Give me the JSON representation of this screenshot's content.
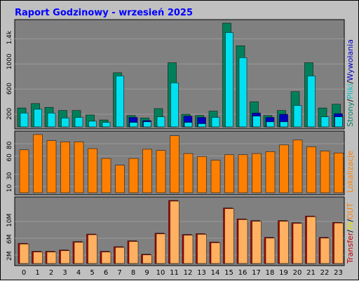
{
  "title": "Raport Godzinowy -  wrzesień 2025",
  "colors": {
    "title": "#0000ff",
    "background": "#c0c0c0",
    "plot_bg": "#808080",
    "strony": "#00805a",
    "pliki": "#00e0f0",
    "wywolania": "#0000c0",
    "lokalizacje": "#ff8000",
    "transfer": "#c00000",
    "in": "#ffff40",
    "out": "#ffb060"
  },
  "side_labels": {
    "panel1": [
      {
        "text": "Strony",
        "color": "#008060"
      },
      {
        "text": "/",
        "color": "#000000"
      },
      {
        "text": "Pliki",
        "color": "#00c0c0"
      },
      {
        "text": "/",
        "color": "#000000"
      },
      {
        "text": "Wywołania",
        "color": "#0000c0"
      }
    ],
    "panel2": [
      {
        "text": "Lokalizacje",
        "color": "#ff8000"
      }
    ],
    "panel3": [
      {
        "text": "Transfer",
        "color": "#c00000"
      },
      {
        "text": "/",
        "color": "#000000"
      },
      {
        "text": "IN",
        "color": "#e0e000"
      },
      {
        "text": "/",
        "color": "#000000"
      },
      {
        "text": "OUT",
        "color": "#ff8000"
      }
    ]
  },
  "chart_data": [
    {
      "type": "bar",
      "categories": [
        "0",
        "1",
        "2",
        "3",
        "4",
        "5",
        "6",
        "7",
        "8",
        "9",
        "10",
        "11",
        "12",
        "13",
        "14",
        "15",
        "16",
        "17",
        "18",
        "19",
        "20",
        "21",
        "22",
        "23"
      ],
      "yticks": [
        "200",
        "600",
        "1000",
        "1.4k"
      ],
      "yticks_values": [
        200,
        600,
        1000,
        1400
      ],
      "ylim": [
        0,
        1650
      ],
      "series": [
        {
          "name": "Strony",
          "values": [
            300,
            370,
            310,
            260,
            260,
            190,
            110,
            860,
            180,
            140,
            290,
            1020,
            200,
            180,
            250,
            1650,
            1290,
            400,
            180,
            260,
            560,
            1020,
            300,
            360
          ]
        },
        {
          "name": "Pliki",
          "values": [
            220,
            280,
            220,
            140,
            150,
            90,
            70,
            810,
            70,
            80,
            160,
            700,
            70,
            50,
            150,
            1500,
            1100,
            170,
            80,
            80,
            340,
            810,
            160,
            160
          ]
        },
        {
          "name": "Wywołania",
          "values": [
            0,
            0,
            0,
            0,
            0,
            0,
            0,
            0,
            150,
            100,
            0,
            0,
            170,
            150,
            0,
            0,
            0,
            220,
            150,
            200,
            0,
            0,
            0,
            210
          ]
        }
      ]
    },
    {
      "type": "bar",
      "categories": [
        "0",
        "1",
        "2",
        "3",
        "4",
        "5",
        "6",
        "7",
        "8",
        "9",
        "10",
        "11",
        "12",
        "13",
        "14",
        "15",
        "16",
        "17",
        "18",
        "19",
        "20",
        "21",
        "22",
        "23"
      ],
      "yticks": [
        "10",
        "30",
        "60",
        "80"
      ],
      "yticks_values": [
        10,
        30,
        60,
        80
      ],
      "ylim": [
        0,
        95
      ],
      "series": [
        {
          "name": "Lokalizacje",
          "values": [
            70,
            95,
            85,
            83,
            83,
            72,
            56,
            45,
            56,
            71,
            69,
            93,
            64,
            59,
            53,
            62,
            62,
            64,
            67,
            78,
            86,
            75,
            68,
            65
          ]
        }
      ]
    },
    {
      "type": "bar",
      "categories": [
        "0",
        "1",
        "2",
        "3",
        "4",
        "5",
        "6",
        "7",
        "8",
        "9",
        "10",
        "11",
        "12",
        "13",
        "14",
        "15",
        "16",
        "17",
        "18",
        "19",
        "20",
        "21",
        "22",
        "23"
      ],
      "yticks": [
        "2M",
        "6M",
        "10M"
      ],
      "yticks_values": [
        2,
        6,
        10
      ],
      "ylim": [
        0,
        15
      ],
      "series": [
        {
          "name": "Transfer",
          "values": [
            4.8,
            2.9,
            2.9,
            3.2,
            5.2,
            7.0,
            2.9,
            4.0,
            5.4,
            2.2,
            7.2,
            15.0,
            6.9,
            7.1,
            5.1,
            13.2,
            10.6,
            10.2,
            6.2,
            10.2,
            9.7,
            11.3,
            6.2,
            9.8
          ]
        },
        {
          "name": "OUT",
          "values": [
            4.8,
            2.9,
            2.9,
            3.2,
            5.2,
            7.0,
            2.9,
            4.0,
            5.4,
            2.2,
            7.2,
            15.0,
            6.9,
            7.1,
            5.1,
            13.2,
            10.6,
            10.2,
            6.2,
            10.2,
            9.7,
            11.3,
            6.2,
            9.8
          ]
        }
      ]
    }
  ]
}
